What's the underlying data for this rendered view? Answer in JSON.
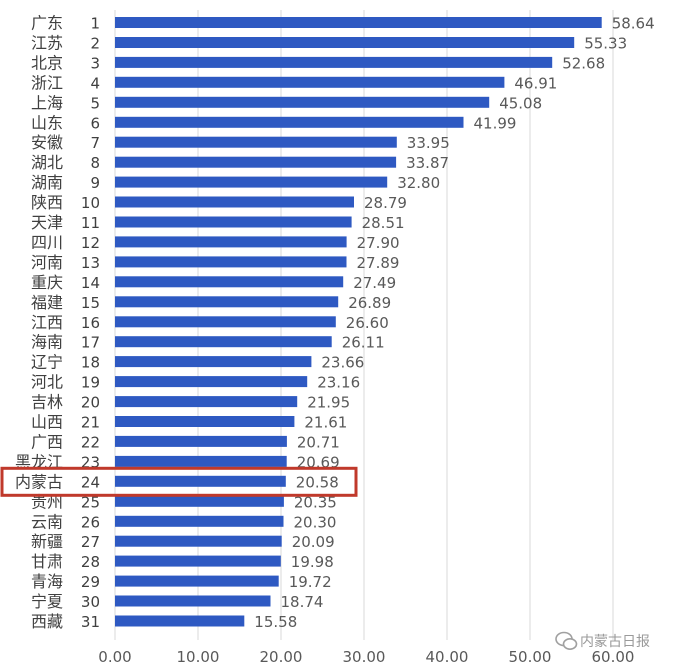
{
  "chart_data": {
    "type": "bar",
    "orientation": "horizontal",
    "categories": [
      "广东",
      "江苏",
      "北京",
      "浙江",
      "上海",
      "山东",
      "安徽",
      "湖北",
      "湖南",
      "陕西",
      "天津",
      "四川",
      "河南",
      "重庆",
      "福建",
      "江西",
      "海南",
      "辽宁",
      "河北",
      "吉林",
      "山西",
      "广西",
      "黑龙江",
      "内蒙古",
      "贵州",
      "云南",
      "新疆",
      "甘肃",
      "青海",
      "宁夏",
      "西藏"
    ],
    "ranks": [
      "1",
      "2",
      "3",
      "4",
      "5",
      "6",
      "7",
      "8",
      "9",
      "10",
      "11",
      "12",
      "13",
      "14",
      "15",
      "16",
      "17",
      "18",
      "19",
      "20",
      "21",
      "22",
      "23",
      "24",
      "25",
      "26",
      "27",
      "28",
      "29",
      "30",
      "31"
    ],
    "values": [
      58.64,
      55.33,
      52.68,
      46.91,
      45.08,
      41.99,
      33.95,
      33.87,
      32.8,
      28.79,
      28.51,
      27.9,
      27.89,
      27.49,
      26.89,
      26.6,
      26.11,
      23.66,
      23.16,
      21.95,
      21.61,
      20.71,
      20.69,
      20.58,
      20.35,
      20.3,
      20.09,
      19.98,
      19.72,
      18.74,
      15.58
    ],
    "value_labels": [
      "58.64",
      "55.33",
      "52.68",
      "46.91",
      "45.08",
      "41.99",
      "33.95",
      "33.87",
      "32.80",
      "28.79",
      "28.51",
      "27.90",
      "27.89",
      "27.49",
      "26.89",
      "26.60",
      "26.11",
      "23.66",
      "23.16",
      "21.95",
      "21.61",
      "20.71",
      "20.69",
      "20.58",
      "20.35",
      "20.30",
      "20.09",
      "19.98",
      "19.72",
      "18.74",
      "15.58"
    ],
    "x_ticks": [
      "0.00",
      "10.00",
      "20.00",
      "30.00",
      "40.00",
      "50.00",
      "60.00"
    ],
    "xlim": [
      0,
      60
    ],
    "grid": "vertical",
    "highlighted_category": "内蒙古",
    "title": "",
    "xlabel": "",
    "ylabel": ""
  },
  "colors": {
    "bar": "#2e59c2",
    "bar_highlight": "#2e59c2",
    "highlight_box": "#c0392b",
    "grid": "#d9d9d9"
  },
  "watermark": {
    "icon": "wechat-icon",
    "text": "内蒙古日报"
  }
}
